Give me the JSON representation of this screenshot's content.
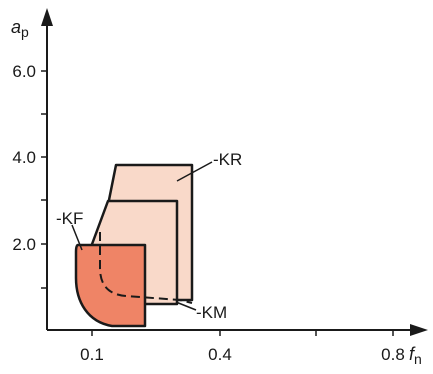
{
  "axes": {
    "y_title": "a",
    "y_subscript": "p",
    "x_title": "f",
    "x_subscript": "n",
    "y_ticks": [
      "6.0",
      "4.0",
      "2.0"
    ],
    "x_ticks": [
      "0.1",
      "0.4",
      "0.8"
    ]
  },
  "regions": [
    {
      "id": "KR",
      "label": "-KR",
      "fill": "#f9d9c9"
    },
    {
      "id": "KM",
      "label": "-KM",
      "fill": "#f9d9c9"
    },
    {
      "id": "KF",
      "label": "-KF",
      "fill": "#ef8466"
    }
  ],
  "colors": {
    "outline": "#1a1a1a",
    "light_fill": "#f9d9c9",
    "dark_fill": "#ef8466"
  }
}
